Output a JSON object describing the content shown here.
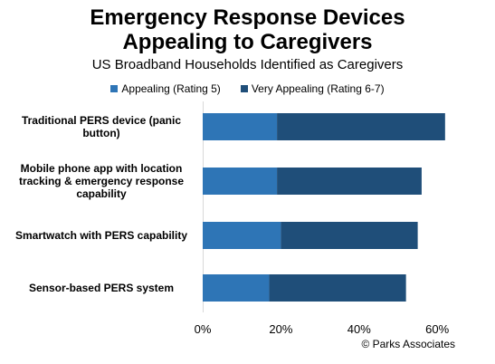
{
  "chart_data": {
    "type": "bar",
    "orientation": "horizontal",
    "stacked": true,
    "title_line1": "Emergency Response Devices",
    "title_line2": "Appealing to Caregivers",
    "subtitle": "US Broadband Households Identified as Caregivers",
    "categories": [
      "Traditional PERS device (panic button)",
      "Mobile phone app with location tracking & emergency response capability",
      "Smartwatch with PERS capability",
      "Sensor-based PERS system"
    ],
    "category_lines": [
      [
        "Traditional PERS device (panic",
        "button)"
      ],
      [
        "Mobile phone app with location",
        "tracking & emergency response",
        "capability"
      ],
      [
        "Smartwatch with PERS capability"
      ],
      [
        "Sensor-based PERS system"
      ]
    ],
    "series": [
      {
        "name": "Appealing (Rating 5)",
        "color": "#2e75b6",
        "values": [
          19,
          19,
          20,
          17
        ]
      },
      {
        "name": "Very Appealing (Rating 6-7)",
        "color": "#1f4e79",
        "values": [
          43,
          37,
          35,
          35
        ]
      }
    ],
    "xlim": [
      0,
      60
    ],
    "xticks": [
      "0%",
      "20%",
      "40%",
      "60%"
    ],
    "grid": false,
    "legend_position": "top"
  },
  "source": "© Parks Associates"
}
